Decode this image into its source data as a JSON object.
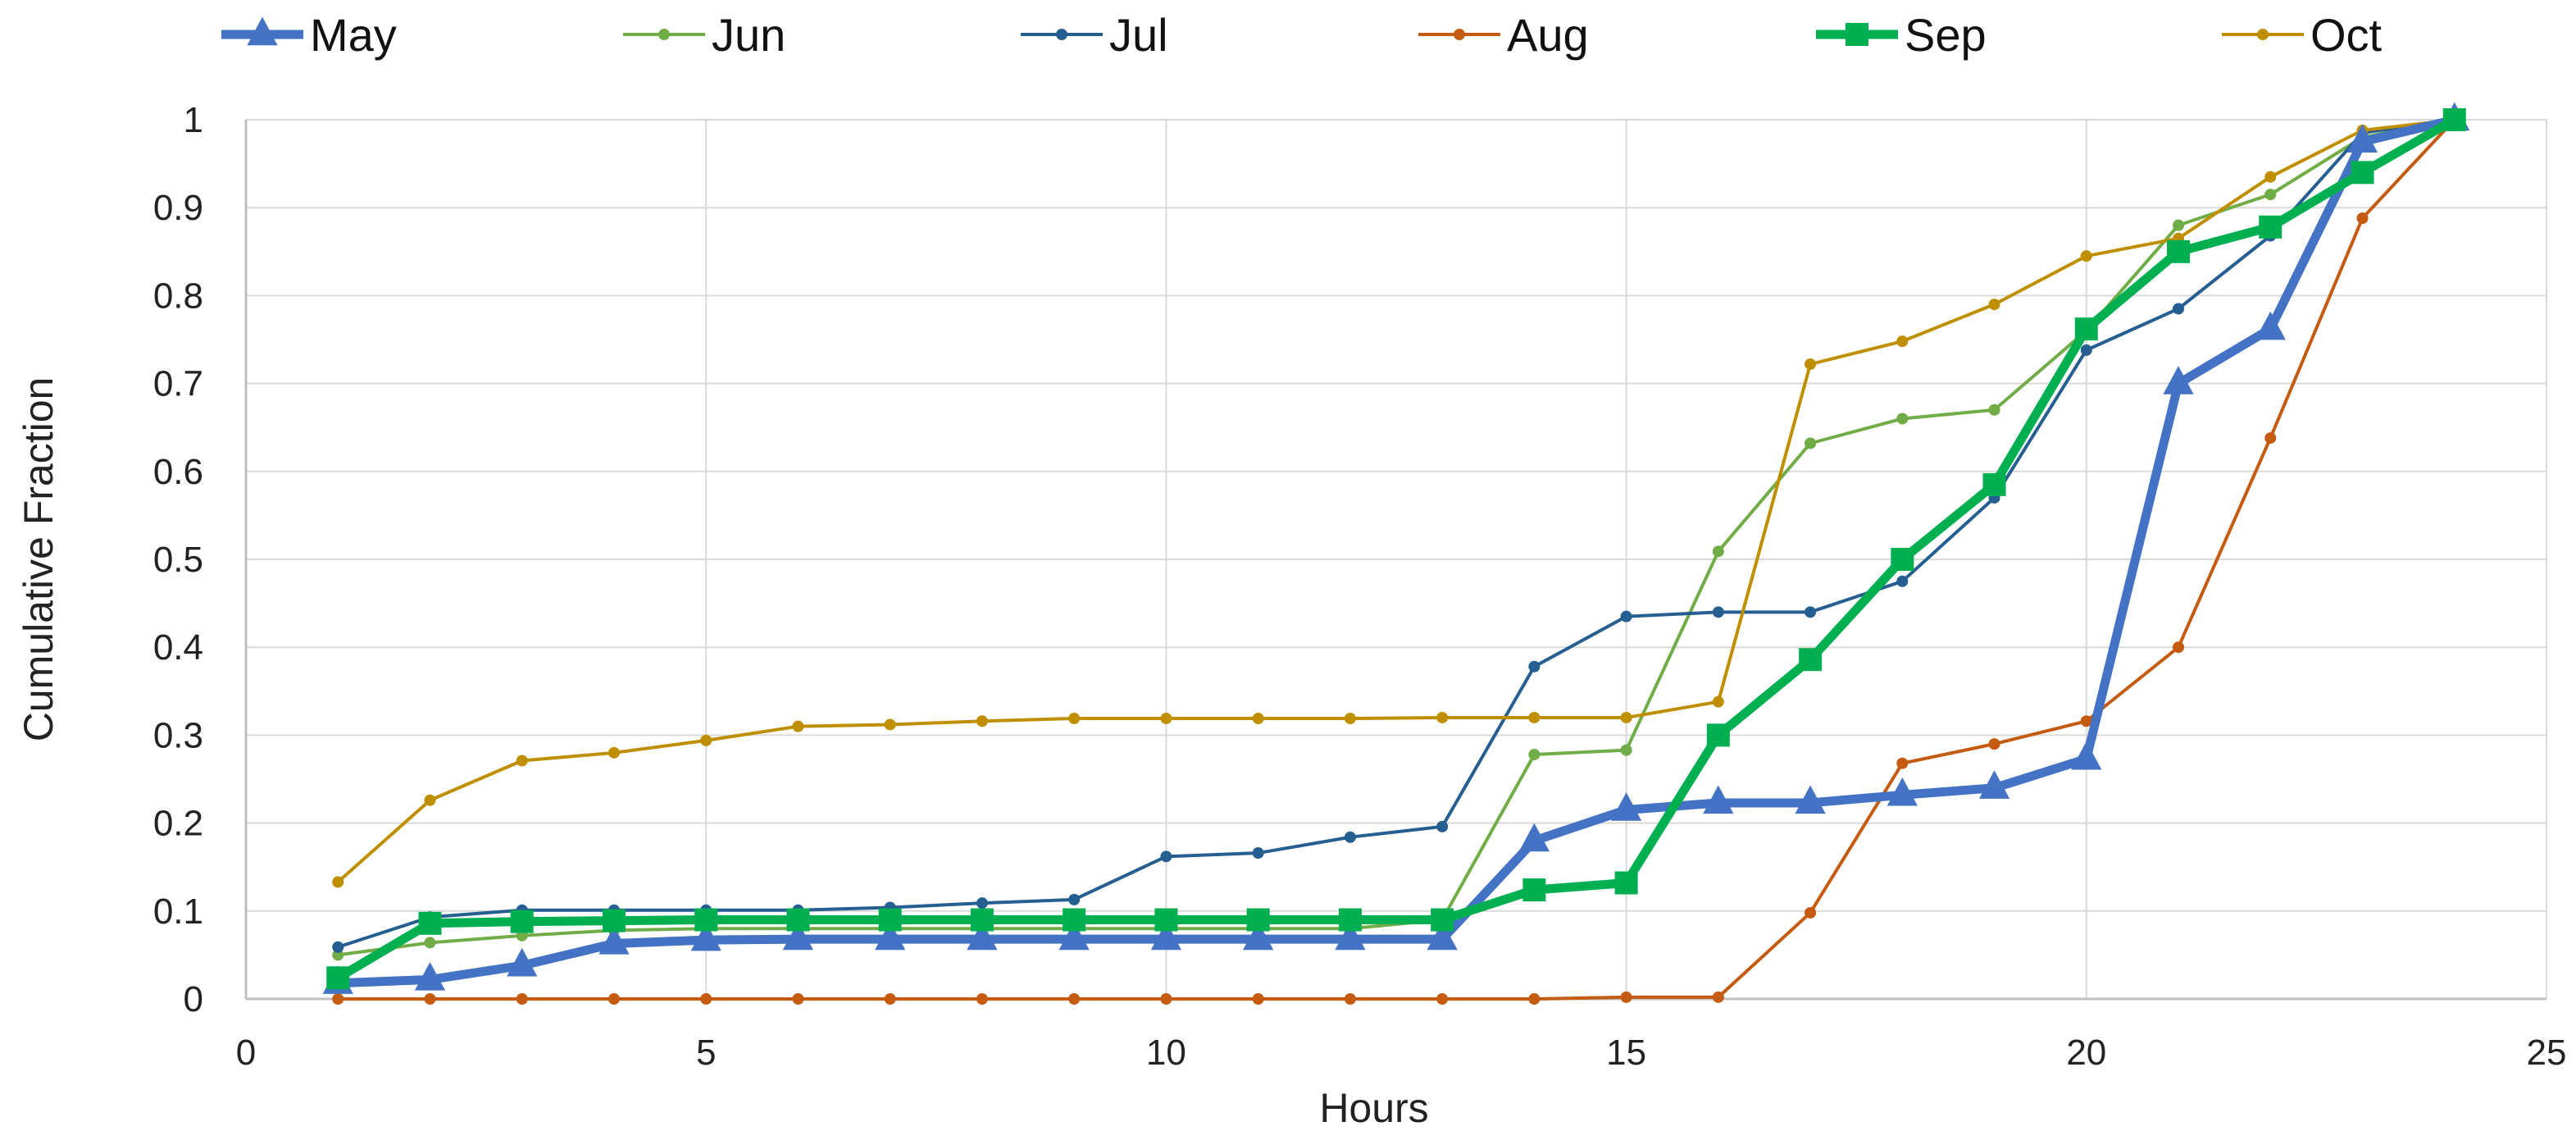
{
  "chart_data": {
    "type": "line",
    "xlabel": "Hours",
    "ylabel": "Cumulative Fraction",
    "xlim": [
      0,
      25
    ],
    "ylim": [
      0,
      1
    ],
    "x_ticks": [
      0,
      5,
      10,
      15,
      20,
      25
    ],
    "y_ticks": [
      0,
      0.1,
      0.2,
      0.3,
      0.4,
      0.5,
      0.6,
      0.7,
      0.8,
      0.9,
      1
    ],
    "x_tick_labels": [
      "0",
      "5",
      "10",
      "15",
      "20",
      "25"
    ],
    "y_tick_labels": [
      "0",
      "0.1",
      "0.2",
      "0.3",
      "0.4",
      "0.5",
      "0.6",
      "0.7",
      "0.8",
      "0.9",
      "1"
    ],
    "grid": true,
    "legend_position": "top",
    "x": [
      1,
      2,
      3,
      4,
      5,
      6,
      7,
      8,
      9,
      10,
      11,
      12,
      13,
      14,
      15,
      16,
      17,
      18,
      19,
      20,
      21,
      22,
      23,
      24
    ],
    "series": [
      {
        "name": "May",
        "color": "#4472C4",
        "marker": "triangle",
        "bold": true,
        "values": [
          0.018,
          0.022,
          0.038,
          0.063,
          0.067,
          0.068,
          0.068,
          0.068,
          0.068,
          0.068,
          0.068,
          0.068,
          0.068,
          0.18,
          0.215,
          0.223,
          0.223,
          0.232,
          0.24,
          0.273,
          0.7,
          0.762,
          0.975,
          1.0
        ]
      },
      {
        "name": "Jun",
        "color": "#70AD47",
        "marker": "circle",
        "bold": false,
        "values": [
          0.05,
          0.064,
          0.072,
          0.078,
          0.08,
          0.08,
          0.08,
          0.08,
          0.08,
          0.08,
          0.08,
          0.08,
          0.09,
          0.278,
          0.283,
          0.509,
          0.632,
          0.66,
          0.67,
          0.76,
          0.88,
          0.915,
          0.98,
          1.0
        ]
      },
      {
        "name": "Jul",
        "color": "#255E91",
        "marker": "circle",
        "bold": false,
        "values": [
          0.059,
          0.093,
          0.101,
          0.101,
          0.101,
          0.101,
          0.104,
          0.109,
          0.113,
          0.162,
          0.166,
          0.184,
          0.196,
          0.378,
          0.435,
          0.44,
          0.44,
          0.475,
          0.57,
          0.738,
          0.785,
          0.868,
          0.985,
          1.0
        ]
      },
      {
        "name": "Aug",
        "color": "#C55A11",
        "marker": "circle",
        "bold": false,
        "values": [
          0,
          0,
          0,
          0,
          0,
          0,
          0,
          0,
          0,
          0,
          0,
          0,
          0,
          0,
          0.002,
          0.002,
          0.098,
          0.268,
          0.29,
          0.316,
          0.4,
          0.638,
          0.888,
          1.0
        ]
      },
      {
        "name": "Sep",
        "color": "#00B050",
        "marker": "square",
        "bold": true,
        "values": [
          0.024,
          0.086,
          0.088,
          0.089,
          0.09,
          0.09,
          0.09,
          0.09,
          0.09,
          0.09,
          0.09,
          0.09,
          0.09,
          0.124,
          0.132,
          0.3,
          0.386,
          0.5,
          0.585,
          0.762,
          0.85,
          0.878,
          0.94,
          1.0
        ]
      },
      {
        "name": "Oct",
        "color": "#BF8F00",
        "marker": "circle",
        "bold": false,
        "values": [
          0.133,
          0.226,
          0.271,
          0.28,
          0.294,
          0.31,
          0.312,
          0.316,
          0.319,
          0.319,
          0.319,
          0.319,
          0.32,
          0.32,
          0.32,
          0.338,
          0.722,
          0.748,
          0.79,
          0.845,
          0.865,
          0.935,
          0.988,
          1.0
        ]
      }
    ]
  }
}
